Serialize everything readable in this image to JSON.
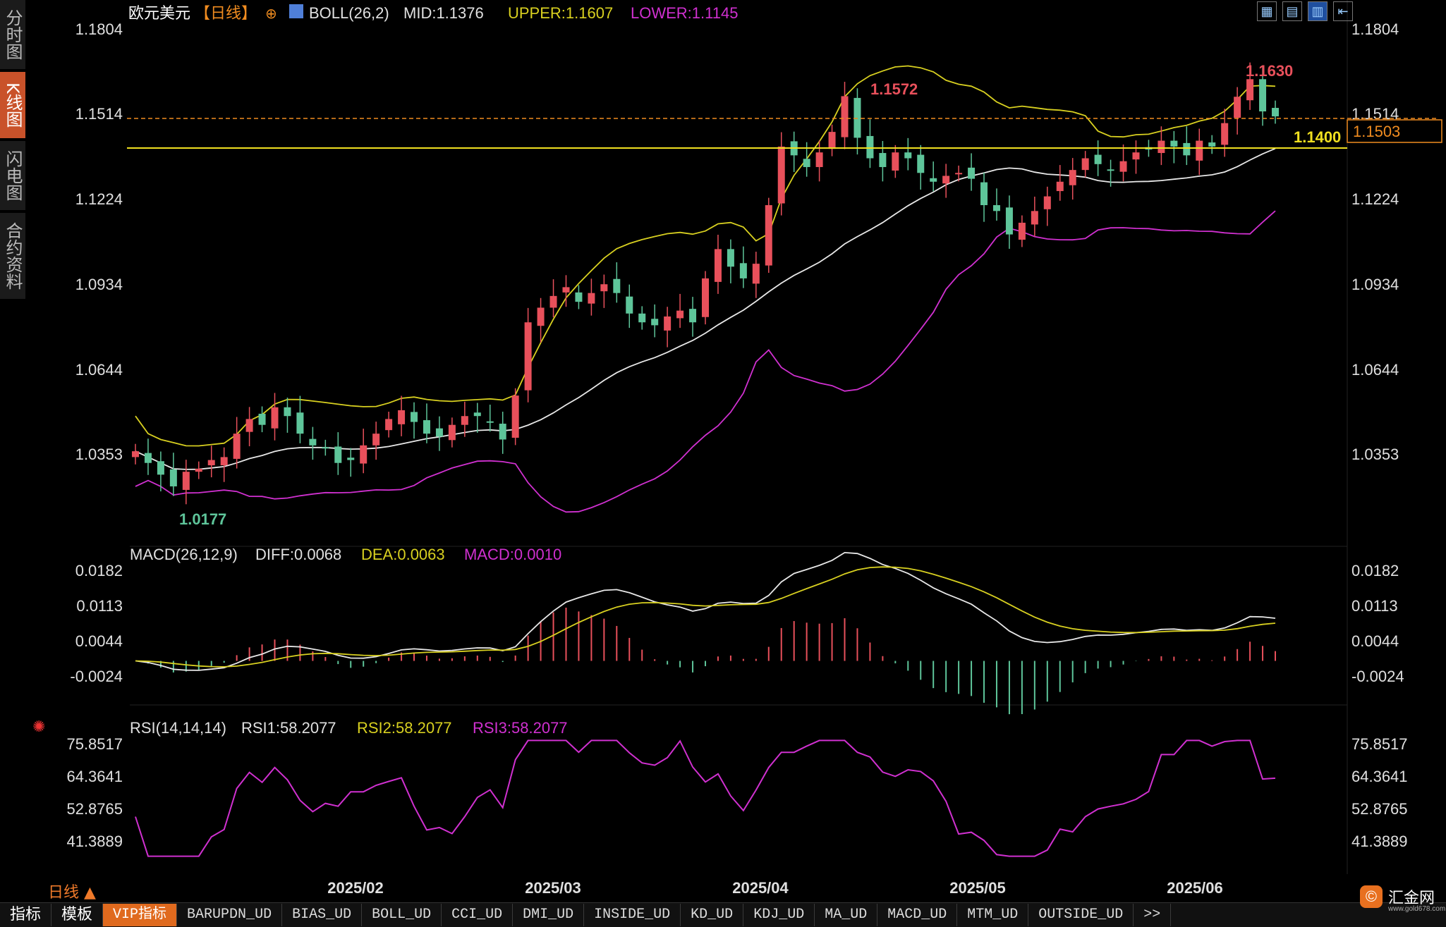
{
  "sidebar": {
    "tabs": [
      {
        "label": "分时图",
        "active": false
      },
      {
        "label": "K线图",
        "active": true
      },
      {
        "label": "闪电图",
        "active": false
      },
      {
        "label": "合约资料",
        "active": false
      }
    ]
  },
  "header": {
    "symbol": "欧元美元",
    "period": "【日线】",
    "add_icon": "⊕",
    "boll_label": "BOLL(26,2)",
    "mid": "MID:1.1376",
    "upper": "UPPER:1.1607",
    "lower": "LOWER:1.1145"
  },
  "toolbar_icons": [
    "grid-icon",
    "chart-layout-icon",
    "chart-type-icon",
    "arrow-icon"
  ],
  "price_panel": {
    "y_ticks": [
      "1.1804",
      "1.1514",
      "1.1224",
      "1.0934",
      "1.0644",
      "1.0353"
    ],
    "high_label": "1.1630",
    "mid_high_label": "1.1572",
    "low_label": "1.0177",
    "current_price": "1.1503",
    "level_line": "1.1400"
  },
  "macd_panel": {
    "label": "MACD(26,12,9)",
    "diff": "DIFF:0.0068",
    "dea": "DEA:0.0063",
    "macd": "MACD:0.0010",
    "y_ticks": [
      "0.0182",
      "0.0113",
      "0.0044",
      "-0.0024"
    ]
  },
  "rsi_panel": {
    "label": "RSI(14,14,14)",
    "rsi1": "RSI1:58.2077",
    "rsi2": "RSI2:58.2077",
    "rsi3": "RSI3:58.2077",
    "y_ticks": [
      "75.8517",
      "64.3641",
      "52.8765",
      "41.3889"
    ]
  },
  "x_axis": [
    "2025/02",
    "2025/03",
    "2025/04",
    "2025/05",
    "2025/06"
  ],
  "period_selector": "日线 ▲",
  "bottom_tabs": [
    {
      "label": "指标",
      "active": false,
      "big": true
    },
    {
      "label": "模板",
      "active": false,
      "big": true
    },
    {
      "label": "VIP指标",
      "active": true,
      "big": false
    },
    {
      "label": "BARUPDN_UD",
      "active": false,
      "big": false
    },
    {
      "label": "BIAS_UD",
      "active": false,
      "big": false
    },
    {
      "label": "BOLL_UD",
      "active": false,
      "big": false
    },
    {
      "label": "CCI_UD",
      "active": false,
      "big": false
    },
    {
      "label": "DMI_UD",
      "active": false,
      "big": false
    },
    {
      "label": "INSIDE_UD",
      "active": false,
      "big": false
    },
    {
      "label": "KD_UD",
      "active": false,
      "big": false
    },
    {
      "label": "KDJ_UD",
      "active": false,
      "big": false
    },
    {
      "label": "MA_UD",
      "active": false,
      "big": false
    },
    {
      "label": "MACD_UD",
      "active": false,
      "big": false
    },
    {
      "label": "MTM_UD",
      "active": false,
      "big": false
    },
    {
      "label": "OUTSIDE_UD",
      "active": false,
      "big": false
    },
    {
      "label": ">>",
      "active": false,
      "big": false
    }
  ],
  "logo": {
    "name": "汇金网",
    "url": "www.gold678.com"
  },
  "colors": {
    "up": "#e8505b",
    "down": "#5ec59a",
    "upper_band": "#d8d020",
    "mid_band": "#e8e8e8",
    "lower_band": "#d030d0",
    "level": "#f0e020",
    "current": "#f08c20",
    "accent": "#e06a1e"
  },
  "chart_data": [
    {
      "type": "candlestick",
      "title": "欧元美元 BOLL(26,2)",
      "x_ticks": [
        "2025/02",
        "2025/03",
        "2025/04",
        "2025/05",
        "2025/06"
      ],
      "ylim": [
        1.0177,
        1.1804
      ],
      "close_path": [
        1.036,
        1.032,
        1.028,
        1.024,
        1.029,
        1.03,
        1.033,
        1.034,
        1.042,
        1.047,
        1.045,
        1.051,
        1.048,
        1.042,
        1.038,
        1.037,
        1.032,
        1.033,
        1.038,
        1.042,
        1.047,
        1.05,
        1.046,
        1.042,
        1.041,
        1.045,
        1.048,
        1.048,
        1.046,
        1.04,
        1.055,
        1.08,
        1.085,
        1.089,
        1.092,
        1.087,
        1.09,
        1.093,
        1.09,
        1.083,
        1.08,
        1.079,
        1.082,
        1.084,
        1.08,
        1.095,
        1.105,
        1.099,
        1.095,
        1.1,
        1.12,
        1.14,
        1.137,
        1.133,
        1.138,
        1.145,
        1.1572,
        1.143,
        1.136,
        1.133,
        1.138,
        1.136,
        1.131,
        1.128,
        1.13,
        1.131,
        1.129,
        1.12,
        1.118,
        1.11,
        1.114,
        1.118,
        1.123,
        1.128,
        1.132,
        1.136,
        1.134,
        1.132,
        1.135,
        1.138,
        1.139,
        1.142,
        1.14,
        1.137,
        1.142,
        1.14,
        1.148,
        1.157,
        1.163,
        1.152,
        1.1503
      ],
      "boll_mid": "MID:1.1376",
      "boll_upper": "UPPER:1.1607",
      "boll_lower": "LOWER:1.1145",
      "annotations": [
        "1.1630",
        "1.1572",
        "1.0177",
        "1.1503",
        "1.1400"
      ]
    },
    {
      "type": "bar+line",
      "title": "MACD(26,12,9)",
      "ylim": [
        -0.005,
        0.019
      ],
      "diff_last": 0.0068,
      "dea_last": 0.0063,
      "macd_last": 0.001
    },
    {
      "type": "line",
      "title": "RSI(14,14,14)",
      "ylim": [
        33,
        78
      ],
      "rsi_last": 58.2077
    }
  ]
}
